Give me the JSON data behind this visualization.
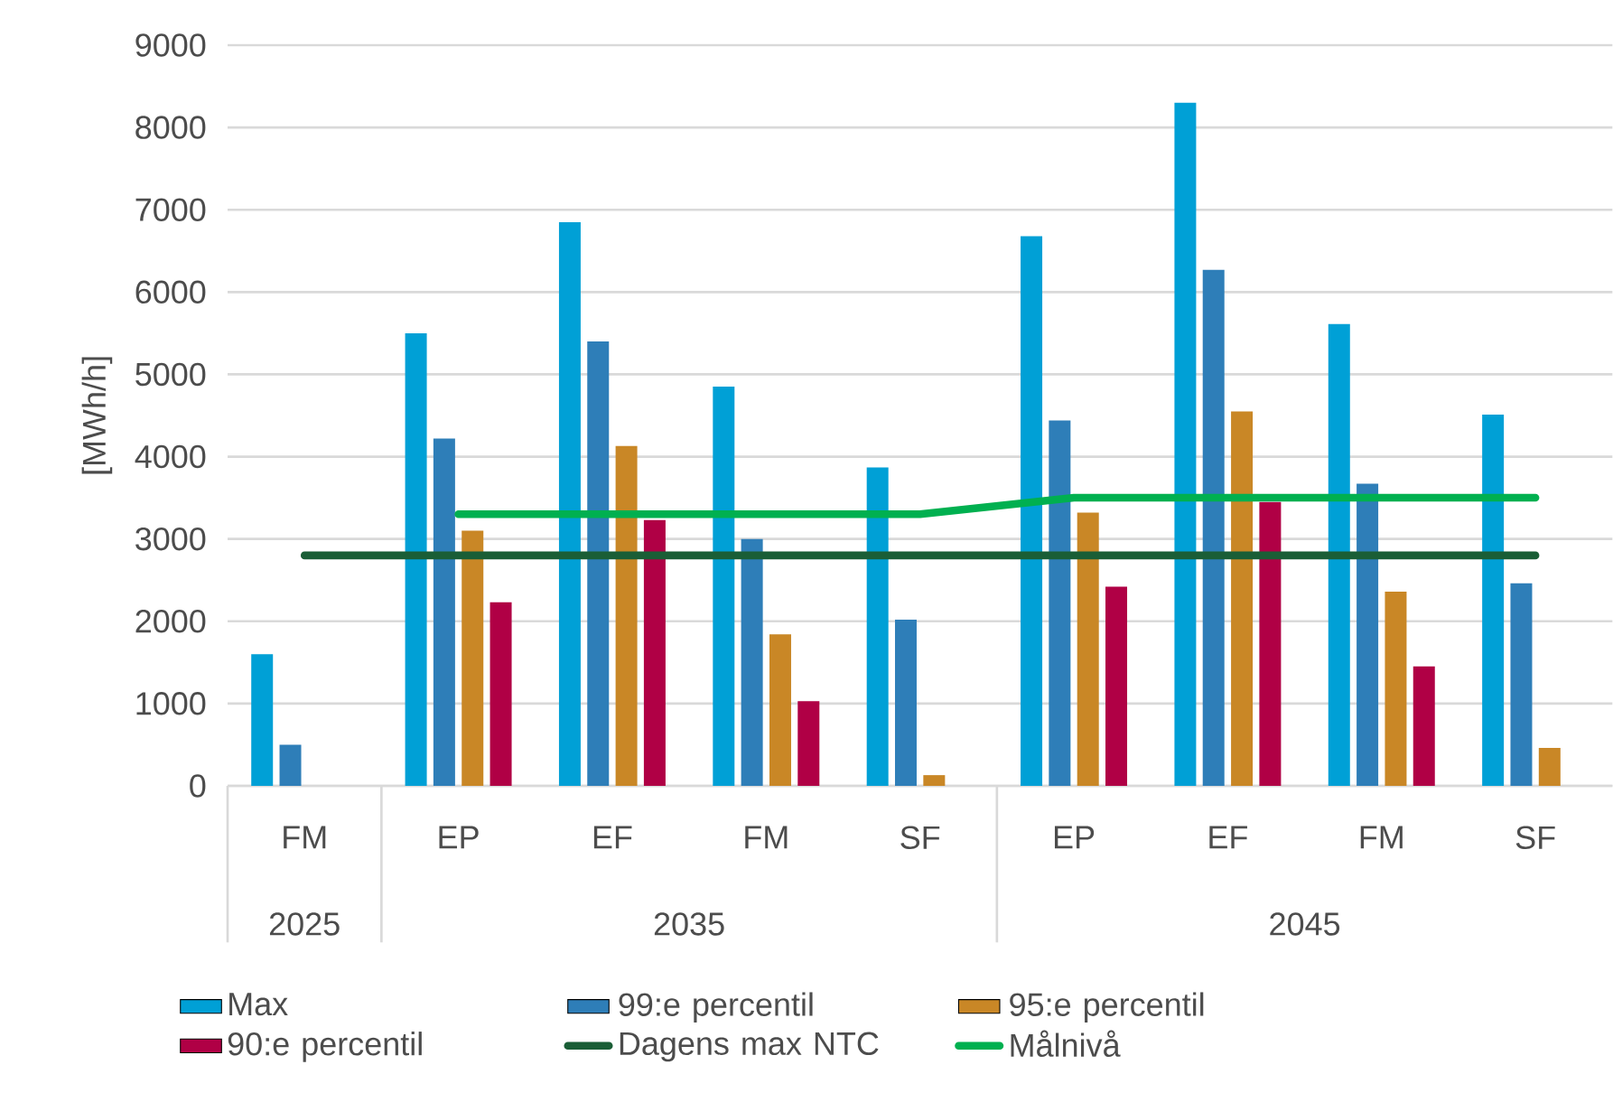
{
  "chart_data": {
    "type": "bar",
    "ylabel": "[MWh/h]",
    "categories": [
      "FM",
      "EP",
      "EF",
      "FM",
      "SF",
      "EP",
      "EF",
      "FM",
      "SF"
    ],
    "annotations": [
      "2025",
      "2035",
      "2045"
    ],
    "series": [
      {
        "name": "Max",
        "color": "#00a0d6",
        "values": [
          1600,
          5500,
          6850,
          4850,
          3870,
          6680,
          8300,
          5610,
          4510
        ]
      },
      {
        "name": "99:e percentil",
        "color": "#2e7eb8",
        "values": [
          500,
          4220,
          5400,
          3000,
          2020,
          4440,
          6270,
          3670,
          2460
        ]
      },
      {
        "name": "95:e percentil",
        "color": "#c98726",
        "values": [
          null,
          3100,
          4130,
          1840,
          130,
          3320,
          4550,
          2360,
          460
        ]
      },
      {
        "name": "90:e percentil",
        "color": "#b00045",
        "values": [
          null,
          2230,
          3230,
          1030,
          null,
          2420,
          3450,
          1450,
          null
        ]
      },
      {
        "name": "Dagens max NTC",
        "type": "line",
        "color": "#1a5e36",
        "values": [
          2800,
          2800,
          2800,
          2800,
          2800,
          2800,
          2800,
          2800,
          2800
        ]
      },
      {
        "name": "Målnivå",
        "type": "line",
        "color": "#00b050",
        "values": [
          null,
          3300,
          3300,
          3300,
          3300,
          3500,
          3500,
          3500,
          3500
        ]
      }
    ],
    "ylim": [
      0,
      9000
    ],
    "yticks": [
      0,
      1000,
      2000,
      3000,
      4000,
      5000,
      6000,
      7000,
      8000,
      9000
    ],
    "grid": "y",
    "legend": "bottom",
    "marker": "none"
  }
}
